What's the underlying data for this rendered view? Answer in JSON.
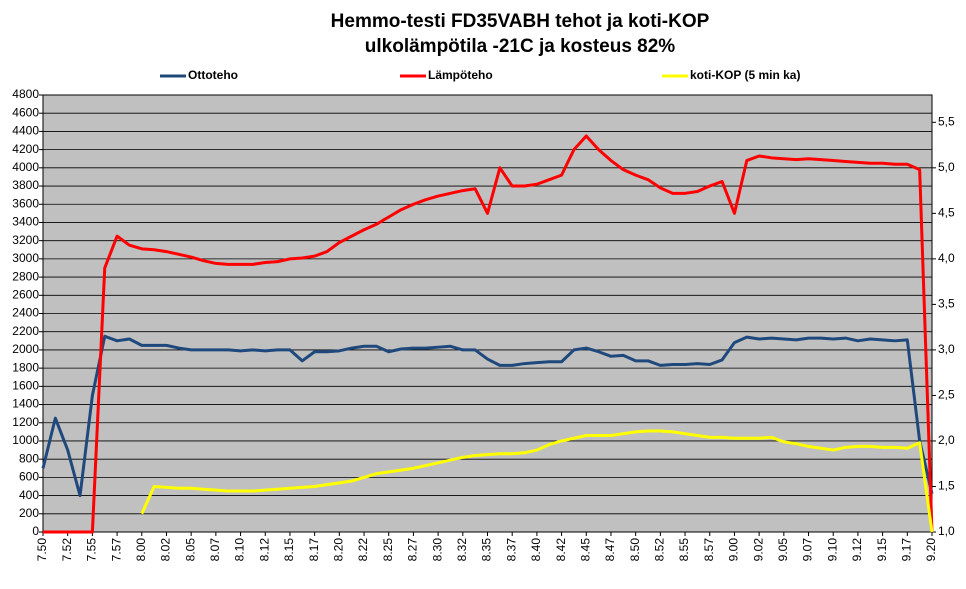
{
  "chart_data": {
    "type": "line",
    "title": "Hemmo-testi FD35VABH  tehot ja koti-KOP",
    "subtitle": "ulkolämpötila  -21C ja kosteus 82%",
    "categories": [
      "7.50",
      null,
      "7.52",
      null,
      "7.55",
      null,
      "7.57",
      null,
      "8.00",
      null,
      "8.02",
      null,
      "8.05",
      null,
      "8.07",
      null,
      "8.10",
      null,
      "8.12",
      null,
      "8.15",
      null,
      "8.17",
      null,
      "8.20",
      null,
      "8.22",
      null,
      "8.25",
      null,
      "8.27",
      null,
      "8.30",
      null,
      "8.32",
      null,
      "8.35",
      null,
      "8.37",
      null,
      "8.40",
      null,
      "8.42",
      null,
      "8.45",
      null,
      "8.47",
      null,
      "8.50",
      null,
      "8.52",
      null,
      "8.55",
      null,
      "8.57",
      null,
      "9.00",
      null,
      "9.02",
      null,
      "9.05",
      null,
      "9.07",
      null,
      "9.10",
      null,
      "9.12",
      null,
      "9.15",
      null,
      "9.17",
      null,
      "9.20"
    ],
    "series": [
      {
        "name": "Ottoteho",
        "color": "#1f497d",
        "values": [
          700,
          1250,
          900,
          400,
          1500,
          2150,
          2100,
          2120,
          2050,
          2050,
          2050,
          2020,
          2000,
          2000,
          2000,
          2000,
          1990,
          2000,
          1990,
          2000,
          2000,
          1880,
          1980,
          1980,
          1990,
          2020,
          2040,
          2040,
          1980,
          2010,
          2020,
          2020,
          2030,
          2040,
          2000,
          2000,
          1900,
          1830,
          1830,
          1850,
          1860,
          1870,
          1870,
          2000,
          2020,
          1980,
          1930,
          1940,
          1880,
          1880,
          1830,
          1840,
          1840,
          1850,
          1840,
          1890,
          2080,
          2140,
          2120,
          2130,
          2120,
          2110,
          2130,
          2130,
          2120,
          2130,
          2100,
          2120,
          2110,
          2100,
          2110,
          1000,
          420
        ]
      },
      {
        "name": "Lämpöteho",
        "color": "#ff0000",
        "values": [
          0,
          0,
          0,
          0,
          0,
          2900,
          3250,
          3150,
          3110,
          3100,
          3080,
          3050,
          3020,
          2980,
          2950,
          2940,
          2940,
          2940,
          2960,
          2970,
          3000,
          3010,
          3030,
          3080,
          3180,
          3250,
          3320,
          3380,
          3460,
          3540,
          3600,
          3650,
          3690,
          3720,
          3750,
          3770,
          3500,
          4000,
          3800,
          3800,
          3820,
          3870,
          3920,
          4200,
          4350,
          4200,
          4080,
          3980,
          3920,
          3870,
          3780,
          3720,
          3720,
          3740,
          3800,
          3850,
          3500,
          4080,
          4130,
          4110,
          4100,
          4090,
          4100,
          4090,
          4080,
          4070,
          4060,
          4050,
          4050,
          4040,
          4040,
          3980,
          0
        ]
      },
      {
        "name": "koti-KOP (5 min ka)",
        "color": "#ffff00",
        "axis": "y2",
        "values": [
          null,
          null,
          null,
          null,
          null,
          null,
          null,
          null,
          1.2,
          1.5,
          1.49,
          1.48,
          1.48,
          1.47,
          1.46,
          1.45,
          1.45,
          1.45,
          1.46,
          1.47,
          1.48,
          1.49,
          1.5,
          1.52,
          1.54,
          1.56,
          1.6,
          1.64,
          1.66,
          1.68,
          1.7,
          1.73,
          1.76,
          1.79,
          1.82,
          1.84,
          1.85,
          1.86,
          1.86,
          1.87,
          1.9,
          1.96,
          2.0,
          2.03,
          2.06,
          2.06,
          2.06,
          2.08,
          2.1,
          2.11,
          2.11,
          2.1,
          2.08,
          2.06,
          2.04,
          2.04,
          2.03,
          2.03,
          2.03,
          2.04,
          1.99,
          1.97,
          1.94,
          1.92,
          1.9,
          1.93,
          1.94,
          1.94,
          1.93,
          1.93,
          1.92,
          1.98,
          1.0
        ]
      }
    ],
    "ylim": [
      0,
      4800
    ],
    "yticks": [
      0,
      200,
      400,
      600,
      800,
      1000,
      1200,
      1400,
      1600,
      1800,
      2000,
      2200,
      2400,
      2600,
      2800,
      3000,
      3200,
      3400,
      3600,
      3800,
      4000,
      4200,
      4400,
      4600,
      4800
    ],
    "y2lim": [
      1,
      5.8
    ],
    "y2ticks": [
      {
        "value": 1,
        "label": "1,0"
      },
      {
        "value": 1.5,
        "label": "1,5"
      },
      {
        "value": 2,
        "label": "2,0"
      },
      {
        "value": 2.5,
        "label": "2,5"
      },
      {
        "value": 3,
        "label": "3,0"
      },
      {
        "value": 3.5,
        "label": "3,5"
      },
      {
        "value": 4,
        "label": "4,0"
      },
      {
        "value": 4.5,
        "label": "4,5"
      },
      {
        "value": 5,
        "label": "5,0"
      },
      {
        "value": 5.5,
        "label": "5,5"
      }
    ],
    "grid": true
  }
}
